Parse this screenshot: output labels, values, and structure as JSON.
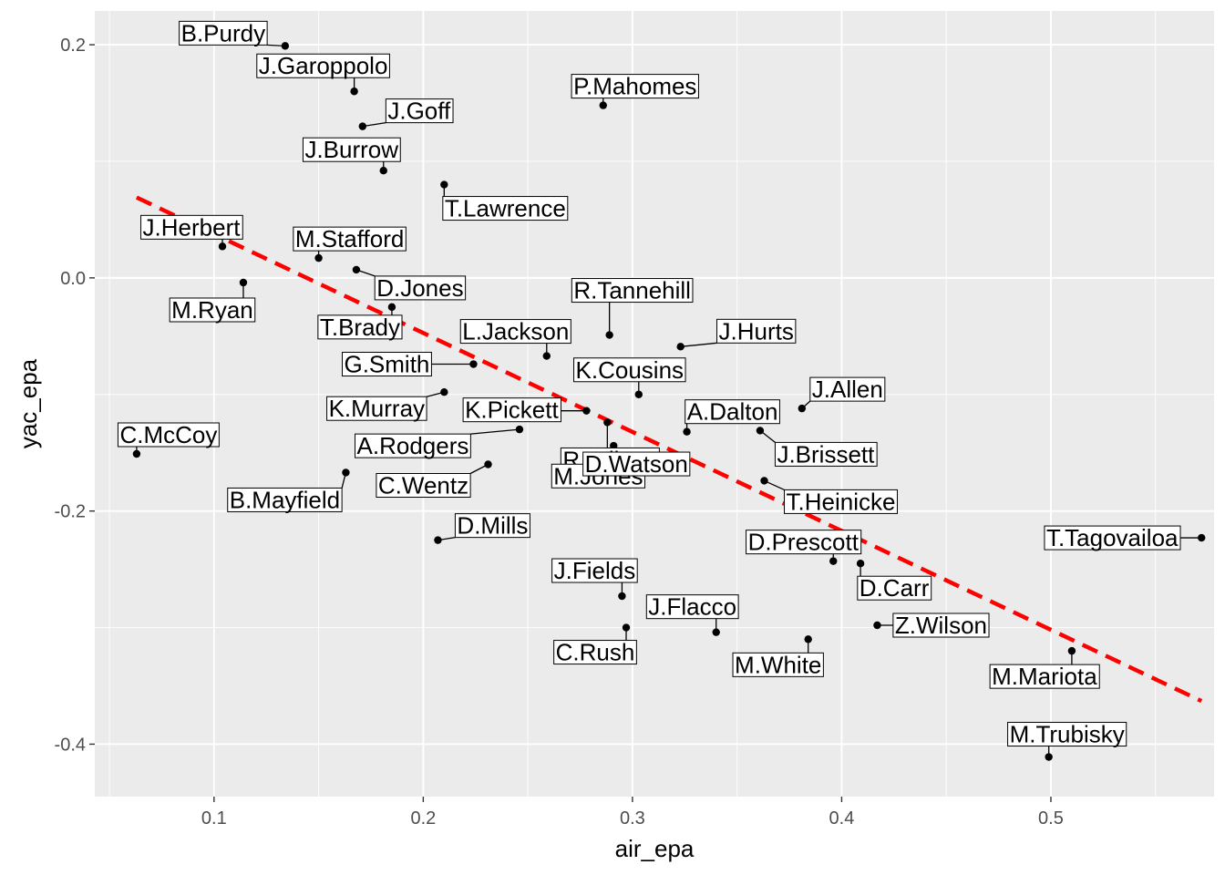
{
  "chart_data": {
    "type": "scatter",
    "xlabel": "air_epa",
    "ylabel": "yac_epa",
    "xlim": [
      0.043,
      0.578
    ],
    "ylim": [
      -0.445,
      0.229
    ],
    "x_ticks": [
      0.1,
      0.2,
      0.3,
      0.4,
      0.5
    ],
    "x_tick_labels": [
      "0.1",
      "0.2",
      "0.3",
      "0.4",
      "0.5"
    ],
    "y_ticks": [
      -0.4,
      -0.2,
      0.0,
      0.2
    ],
    "y_tick_labels": [
      "-0.4",
      "-0.2",
      "0.0",
      "0.2"
    ],
    "grid": true,
    "colors": {
      "panel": "#ebebeb",
      "grid": "#ffffff",
      "point": "#000000",
      "trend": "#ff0000"
    },
    "trend_line": {
      "style": "dashed",
      "x": [
        0.063,
        0.572
      ],
      "y": [
        0.069,
        -0.363
      ]
    },
    "points": [
      {
        "name": "B.Purdy",
        "x": 0.134,
        "y": 0.199
      },
      {
        "name": "J.Garoppolo",
        "x": 0.167,
        "y": 0.16
      },
      {
        "name": "J.Goff",
        "x": 0.171,
        "y": 0.13
      },
      {
        "name": "P.Mahomes",
        "x": 0.286,
        "y": 0.148
      },
      {
        "name": "J.Burrow",
        "x": 0.181,
        "y": 0.092
      },
      {
        "name": "T.Lawrence",
        "x": 0.21,
        "y": 0.08
      },
      {
        "name": "J.Herbert",
        "x": 0.104,
        "y": 0.027
      },
      {
        "name": "M.Stafford",
        "x": 0.15,
        "y": 0.017
      },
      {
        "name": "D.Jones",
        "x": 0.168,
        "y": 0.007
      },
      {
        "name": "M.Ryan",
        "x": 0.114,
        "y": -0.004
      },
      {
        "name": "T.Brady",
        "x": 0.185,
        "y": -0.025
      },
      {
        "name": "R.Tannehill",
        "x": 0.289,
        "y": -0.049
      },
      {
        "name": "J.Hurts",
        "x": 0.323,
        "y": -0.059
      },
      {
        "name": "L.Jackson",
        "x": 0.259,
        "y": -0.067
      },
      {
        "name": "G.Smith",
        "x": 0.224,
        "y": -0.074
      },
      {
        "name": "K.Cousins",
        "x": 0.303,
        "y": -0.1
      },
      {
        "name": "J.Allen",
        "x": 0.381,
        "y": -0.112
      },
      {
        "name": "K.Murray",
        "x": 0.21,
        "y": -0.098
      },
      {
        "name": "K.Pickett",
        "x": 0.278,
        "y": -0.114
      },
      {
        "name": "R.Wilson",
        "x": 0.288,
        "y": -0.124
      },
      {
        "name": "A.Dalton",
        "x": 0.326,
        "y": -0.132
      },
      {
        "name": "J.Brissett",
        "x": 0.361,
        "y": -0.131
      },
      {
        "name": "C.McCoy",
        "x": 0.063,
        "y": -0.151
      },
      {
        "name": "A.Rodgers",
        "x": 0.246,
        "y": -0.13
      },
      {
        "name": "B.Mayfield",
        "x": 0.163,
        "y": -0.167
      },
      {
        "name": "C.Wentz",
        "x": 0.231,
        "y": -0.16
      },
      {
        "name": "M.Jones",
        "x": 0.278,
        "y": -0.152
      },
      {
        "name": "D.Watson",
        "x": 0.291,
        "y": -0.144
      },
      {
        "name": "T.Heinicke",
        "x": 0.363,
        "y": -0.174
      },
      {
        "name": "D.Mills",
        "x": 0.207,
        "y": -0.225
      },
      {
        "name": "T.Tagovailoa",
        "x": 0.572,
        "y": -0.223
      },
      {
        "name": "D.Prescott",
        "x": 0.396,
        "y": -0.243
      },
      {
        "name": "D.Carr",
        "x": 0.409,
        "y": -0.245
      },
      {
        "name": "J.Fields",
        "x": 0.295,
        "y": -0.273
      },
      {
        "name": "J.Flacco",
        "x": 0.34,
        "y": -0.304
      },
      {
        "name": "C.Rush",
        "x": 0.297,
        "y": -0.3
      },
      {
        "name": "M.White",
        "x": 0.384,
        "y": -0.31
      },
      {
        "name": "Z.Wilson",
        "x": 0.417,
        "y": -0.298
      },
      {
        "name": "M.Mariota",
        "x": 0.51,
        "y": -0.32
      },
      {
        "name": "M.Trubisky",
        "x": 0.499,
        "y": -0.411
      }
    ]
  }
}
